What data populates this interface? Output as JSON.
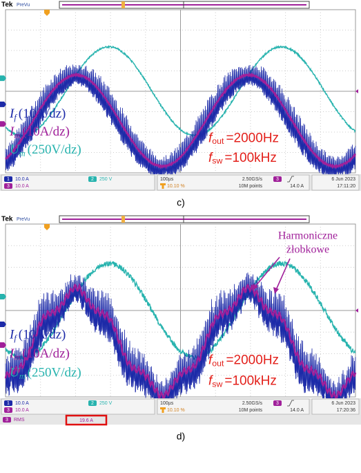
{
  "panels": [
    {
      "header": {
        "brand": "Tek",
        "mode": "PreVu"
      },
      "legend": [
        {
          "symbol": "I",
          "sub": "f",
          "scale": "(10A/dz)"
        },
        {
          "symbol": "I",
          "sub": "m",
          "scale": "(10A/dz)"
        },
        {
          "symbol": "U",
          "sub": "m",
          "scale": "(250V/dz)"
        }
      ],
      "annotation": [
        {
          "symbol": "f",
          "sub": "out",
          "value": "=2000Hz"
        },
        {
          "symbol": "f",
          "sub": "sw",
          "value": "=100kHz"
        }
      ],
      "status": {
        "ch1": "1",
        "ch1_scale": "10.0 A",
        "ch3": "3",
        "ch3_scale": "10.0 A",
        "ch2": "2",
        "ch2_scale": "250 V",
        "timebase": "100µs",
        "trigger_pos": "10.10 %",
        "sample_rate": "2.50GS/s",
        "record": "10M points",
        "trig_ch": "3",
        "trig_level": "14.0 A",
        "date": "6 Jun 2023",
        "time": "17:11:20"
      },
      "caption": "c)"
    },
    {
      "header": {
        "brand": "Tek",
        "mode": "PreVu"
      },
      "legend": [
        {
          "symbol": "I",
          "sub": "f",
          "scale": "(10A/dz)"
        },
        {
          "symbol": "I",
          "sub": "m",
          "scale": "(10A/dz)"
        },
        {
          "symbol": "U",
          "sub": "m",
          "scale": "(250V/dz)"
        }
      ],
      "annotation": [
        {
          "symbol": "f",
          "sub": "out",
          "value": "=2000Hz"
        },
        {
          "symbol": "f",
          "sub": "sw",
          "value": "=100kHz"
        }
      ],
      "callout": [
        "Harmoniczne",
        "żłobkowe"
      ],
      "status": {
        "ch1": "1",
        "ch1_scale": "10.0 A",
        "ch3": "3",
        "ch3_scale": "10.0 A",
        "ch2": "2",
        "ch2_scale": "250 V",
        "timebase": "100µs",
        "trigger_pos": "10.10 %",
        "sample_rate": "2.50GS/s",
        "record": "10M points",
        "trig_ch": "3",
        "trig_level": "14.0 A",
        "date": "6 Jun 2023",
        "time": "17:20:36"
      },
      "measurement": {
        "ch": "3",
        "label": "RMS",
        "value": "19.6 A"
      },
      "caption": "d)"
    }
  ]
}
